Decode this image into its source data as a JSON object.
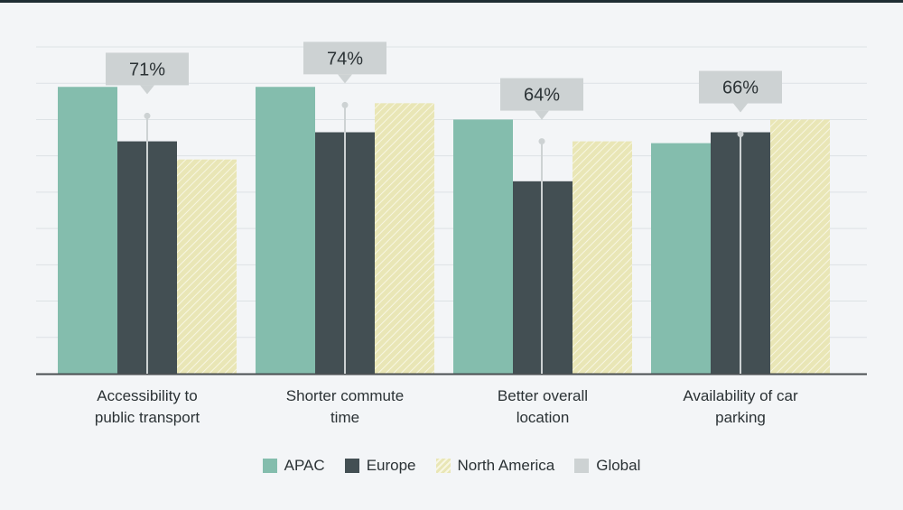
{
  "colors": {
    "apac": "#84bdad",
    "europe": "#434f53",
    "north_america": "#e9e6b6",
    "north_america_stripe": "#f7f6e2",
    "global": "#cdd2d3",
    "axis": "#4a4f52",
    "grid": "#dde2e5",
    "label_text": "#2b3235"
  },
  "chart_data": {
    "type": "bar",
    "categories": [
      [
        "Accessibility to",
        "public transport"
      ],
      [
        "Shorter commute",
        "time"
      ],
      [
        "Better overall",
        "location"
      ],
      [
        "Availability of car",
        "parking"
      ]
    ],
    "series": [
      {
        "name": "APAC",
        "values": [
          79,
          79,
          70,
          63.5
        ]
      },
      {
        "name": "Europe",
        "values": [
          64,
          66.5,
          53,
          66.5
        ]
      },
      {
        "name": "North America",
        "values": [
          59,
          74.5,
          64,
          70
        ]
      },
      {
        "name": "Global",
        "values": [
          71,
          74,
          64,
          66
        ]
      }
    ],
    "global_labels": [
      "71%",
      "74%",
      "64%",
      "66%"
    ],
    "ylim": [
      0,
      90
    ],
    "grid": true,
    "legend_position": "bottom-center",
    "title": "",
    "xlabel": "",
    "ylabel": ""
  },
  "legend": [
    {
      "key": "apac",
      "label": "APAC"
    },
    {
      "key": "europe",
      "label": "Europe"
    },
    {
      "key": "north_america",
      "label": "North America"
    },
    {
      "key": "global",
      "label": "Global"
    }
  ]
}
